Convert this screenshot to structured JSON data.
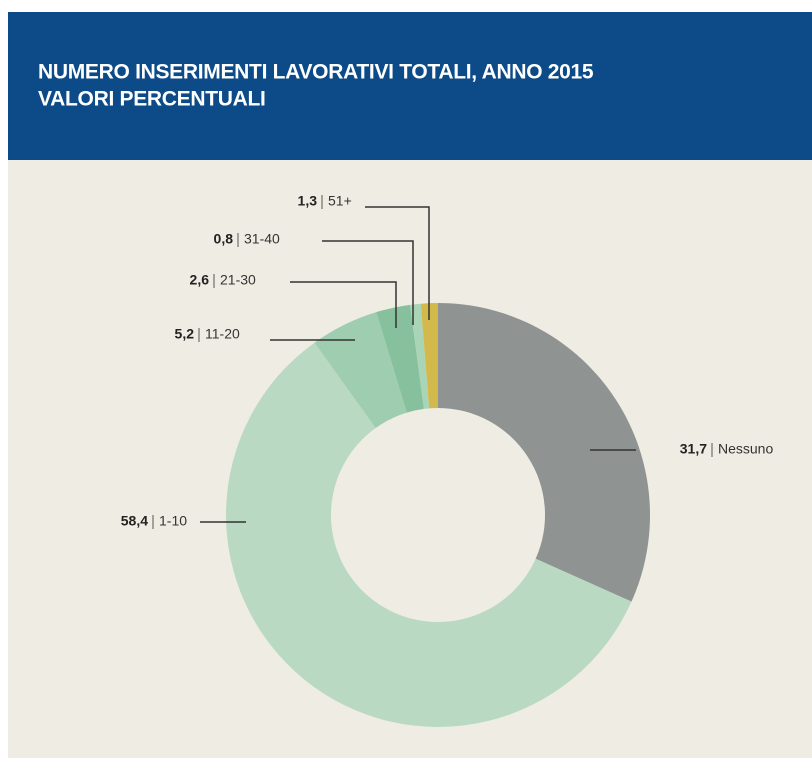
{
  "chart_data": {
    "type": "pie",
    "donut": true,
    "title": "NUMERO INSERIMENTI LAVORATIVI TOTALI, ANNO 2015",
    "subtitle": "VALORI PERCENTUALI",
    "categories": [
      "Nessuno",
      "1-10",
      "11-20",
      "21-30",
      "31-40",
      "51+"
    ],
    "values": [
      31.7,
      58.4,
      5.2,
      2.6,
      0.8,
      1.3
    ],
    "value_labels": [
      "31,7",
      "58,4",
      "5,2",
      "2,6",
      "0,8",
      "1,3"
    ],
    "colors": [
      "#8f9493",
      "#b9d9c2",
      "#9fcdaf",
      "#86c09c",
      "#a9d5b6",
      "#d3b84c"
    ]
  }
}
